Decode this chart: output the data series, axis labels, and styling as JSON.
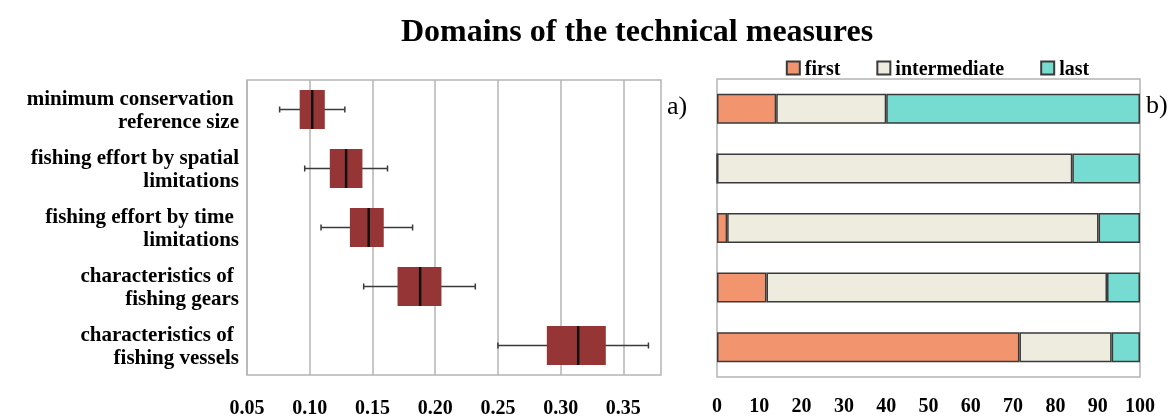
{
  "chart_data": [
    {
      "type": "box",
      "title": "Domains of the technical measures",
      "orientation": "horizontal",
      "categories": [
        "minimum conservation reference size",
        "fishing effort by spatial limitations",
        "fishing effort by time limitations",
        "characteristics of fishing gears",
        "characteristics of fishing vessels"
      ],
      "color": "#953535",
      "boxes": [
        {
          "low": 0.076,
          "q1": 0.092,
          "median": 0.102,
          "q3": 0.112,
          "high": 0.128
        },
        {
          "low": 0.096,
          "q1": 0.116,
          "median": 0.129,
          "q3": 0.142,
          "high": 0.162
        },
        {
          "low": 0.109,
          "q1": 0.132,
          "median": 0.147,
          "q3": 0.159,
          "high": 0.182
        },
        {
          "low": 0.143,
          "q1": 0.17,
          "median": 0.188,
          "q3": 0.205,
          "high": 0.232
        },
        {
          "low": 0.25,
          "q1": 0.289,
          "median": 0.314,
          "q3": 0.336,
          "high": 0.37
        }
      ],
      "xlim": [
        0.05,
        0.38
      ],
      "xticks": [
        0.05,
        {
          "value": 0.1,
          "label": "0.10"
        },
        0.15,
        {
          "value": 0.2,
          "label": "0.20"
        },
        0.25,
        {
          "value": 0.3,
          "label": "0.30"
        },
        0.35
      ],
      "grid": "x",
      "annotations": [
        "a)"
      ]
    },
    {
      "type": "bar",
      "stacked": true,
      "orientation": "horizontal",
      "categories": [
        "minimum conservation reference size",
        "fishing effort by spatial limitations",
        "fishing effort by time limitations",
        "characteristics of fishing gears",
        "characteristics of fishing vessels"
      ],
      "series": [
        {
          "name": "first",
          "color": "#f2956f",
          "values": [
            14,
            0,
            2.4,
            11.7,
            71.5
          ]
        },
        {
          "name": "intermediate",
          "color": "#eeebdf",
          "values": [
            26,
            84,
            87.8,
            80.5,
            21.8
          ]
        },
        {
          "name": "last",
          "color": "#76dbd0",
          "values": [
            60,
            16,
            9.8,
            7.8,
            6.7
          ]
        }
      ],
      "xlim": [
        0,
        100
      ],
      "xticks": [
        0,
        10,
        20,
        30,
        40,
        50,
        60,
        70,
        80,
        90,
        100
      ],
      "legend": "top",
      "tick_labels": "x",
      "annotations": [
        "b)"
      ]
    }
  ]
}
